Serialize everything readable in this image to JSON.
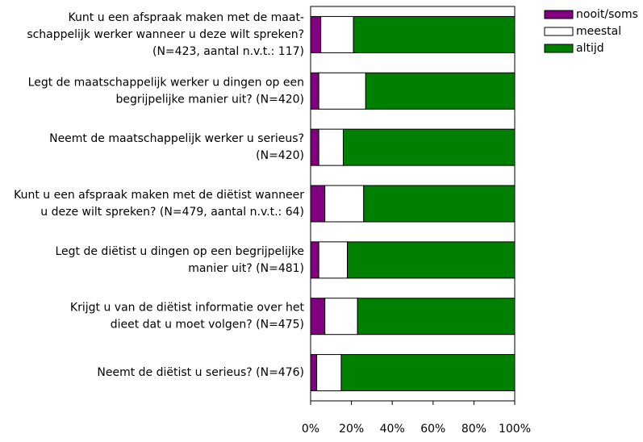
{
  "chart_data": {
    "type": "stacked-bar-horizontal",
    "categories": [
      [
        "Kunt u een afspraak maken met de maat-",
        "schappelijk werker wanneer u deze wilt spreken?",
        "(N=423, aantal n.v.t.: 117)"
      ],
      [
        "Legt de maatschappelijk werker u dingen op een",
        "begrijpelijke manier uit? (N=420)"
      ],
      [
        "Neemt de maatschappelijk werker u serieus?",
        "(N=420)"
      ],
      [
        "Kunt u een afspraak maken met de diëtist wanneer",
        "u deze wilt spreken? (N=479, aantal n.v.t.: 64)"
      ],
      [
        "Legt de diëtist u dingen op een begrijpelijke",
        "manier uit? (N=481)"
      ],
      [
        "Krijgt u van de diëtist informatie over het",
        "dieet dat u moet volgen? (N=475)"
      ],
      [
        "Neemt de diëtist u serieus? (N=476)"
      ]
    ],
    "series": [
      {
        "name": "nooit/soms",
        "color": "#800080",
        "values": [
          5,
          4,
          4,
          7,
          4,
          7,
          3
        ]
      },
      {
        "name": "meestal",
        "color": "#ffffff",
        "values": [
          16,
          23,
          12,
          19,
          14,
          16,
          12
        ]
      },
      {
        "name": "altijd",
        "color": "#008000",
        "values": [
          79,
          73,
          84,
          74,
          82,
          77,
          85
        ]
      }
    ],
    "xlim": [
      0,
      100
    ],
    "xticks": [
      {
        "value": 0,
        "label": "0%"
      },
      {
        "value": 20,
        "label": "20%"
      },
      {
        "value": 40,
        "label": "40%"
      },
      {
        "value": 60,
        "label": "60%"
      },
      {
        "value": 80,
        "label": "80%"
      },
      {
        "value": 100,
        "label": "100%"
      }
    ],
    "legend": "top-right"
  }
}
